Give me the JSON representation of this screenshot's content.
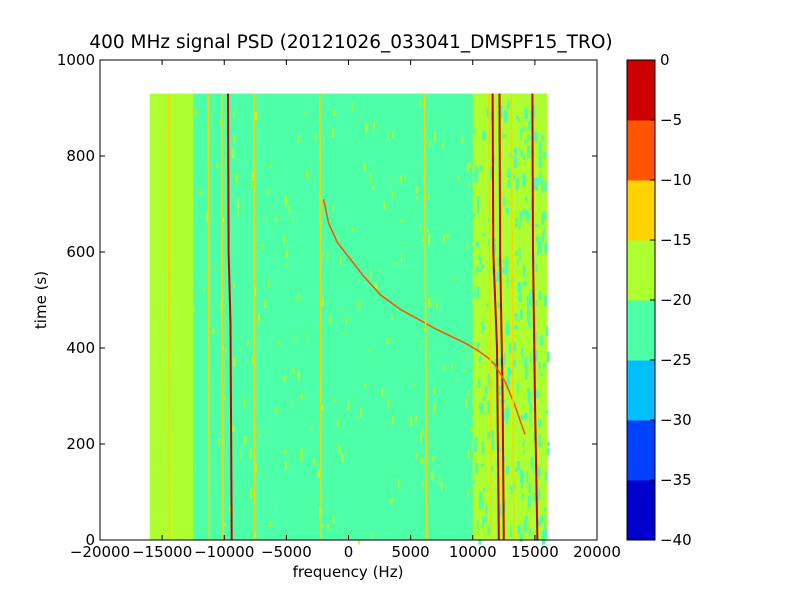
{
  "chart_data": {
    "type": "heatmap",
    "title": "400 MHz signal PSD (20121026_033041_DMSPF15_TRO)",
    "xlabel": "frequency (Hz)",
    "ylabel": "time (s)",
    "xlim": [
      -20000,
      20000
    ],
    "ylim": [
      0,
      1000
    ],
    "x_ticks": [
      -20000,
      -15000,
      -10000,
      -5000,
      0,
      5000,
      10000,
      15000,
      20000
    ],
    "y_ticks": [
      0,
      200,
      400,
      600,
      800,
      1000
    ],
    "data_extent": {
      "x": [
        -16000,
        16000
      ],
      "y": [
        0,
        930
      ]
    },
    "background_color": "#adff2f",
    "colorbar": {
      "levels": [
        -40,
        -35,
        -30,
        -25,
        -20,
        -15,
        -10,
        -5,
        0
      ],
      "tick_labels": [
        "0",
        "−5",
        "−10",
        "−15",
        "−20",
        "−25",
        "−30",
        "−35",
        "−40"
      ],
      "colors": [
        "#0000cd",
        "#0040ff",
        "#00bfff",
        "#4dffa6",
        "#adff2f",
        "#ffd200",
        "#ff5500",
        "#cd0000"
      ]
    },
    "regions": [
      {
        "x": [
          -12500,
          10000
        ],
        "level": "-25 to -20",
        "color": "#4dffa6"
      },
      {
        "x": [
          10000,
          16000
        ],
        "level": "-20 to -15",
        "color": "#adff2f",
        "note": "mixed speckle"
      }
    ],
    "features": [
      {
        "name": "strong carrier",
        "level": "0 to -5",
        "color": "#cd0000",
        "points": [
          [
            -9700,
            930
          ],
          [
            -9650,
            600
          ],
          [
            -9500,
            450
          ],
          [
            -9400,
            0
          ]
        ]
      },
      {
        "name": "strong carrier",
        "level": "0 to -5",
        "color": "#cd0000",
        "points": [
          [
            11600,
            930
          ],
          [
            11650,
            600
          ],
          [
            11950,
            400
          ],
          [
            12100,
            0
          ]
        ]
      },
      {
        "name": "strong carrier",
        "level": "0 to -5",
        "color": "#cd0000",
        "points": [
          [
            12150,
            930
          ],
          [
            12200,
            600
          ],
          [
            12400,
            300
          ],
          [
            12500,
            0
          ]
        ]
      },
      {
        "name": "strong carrier",
        "level": "0 to -5",
        "color": "#cd0000",
        "points": [
          [
            14800,
            930
          ],
          [
            14850,
            600
          ],
          [
            15000,
            300
          ],
          [
            15200,
            0
          ]
        ]
      },
      {
        "name": "doppler sweep",
        "level": "-5 to -10",
        "color": "#ff5500",
        "points": [
          [
            -2000,
            710
          ],
          [
            -1600,
            660
          ],
          [
            -900,
            620
          ],
          [
            0,
            590
          ],
          [
            1200,
            550
          ],
          [
            2600,
            510
          ],
          [
            4200,
            480
          ],
          [
            5600,
            460
          ],
          [
            7000,
            440
          ],
          [
            8200,
            425
          ],
          [
            9400,
            410
          ],
          [
            10400,
            395
          ],
          [
            11200,
            380
          ],
          [
            11800,
            365
          ],
          [
            12600,
            330
          ],
          [
            13400,
            280
          ],
          [
            14200,
            220
          ]
        ]
      },
      {
        "name": "weak line",
        "level": "-10 to -15",
        "color": "#ffd200",
        "points": [
          [
            -14500,
            930
          ],
          [
            -14400,
            0
          ]
        ]
      },
      {
        "name": "weak line",
        "level": "-10 to -15",
        "color": "#ffd200",
        "points": [
          [
            -11300,
            930
          ],
          [
            -11200,
            0
          ]
        ]
      },
      {
        "name": "weak line",
        "level": "-10 to -15",
        "color": "#ffd200",
        "points": [
          [
            -10200,
            930
          ],
          [
            -10100,
            0
          ]
        ]
      },
      {
        "name": "weak line",
        "level": "-10 to -15",
        "color": "#ffd200",
        "points": [
          [
            -7600,
            930
          ],
          [
            -7550,
            0
          ]
        ]
      },
      {
        "name": "weak line",
        "level": "-10 to -15",
        "color": "#ffd200",
        "points": [
          [
            -2300,
            930
          ],
          [
            -2200,
            0
          ]
        ]
      },
      {
        "name": "weak line",
        "level": "-10 to -15",
        "color": "#ffd200",
        "points": [
          [
            6100,
            930
          ],
          [
            6300,
            0
          ]
        ]
      },
      {
        "name": "weak line",
        "level": "-10 to -15",
        "color": "#ffd200",
        "points": [
          [
            11300,
            930
          ],
          [
            11500,
            0
          ]
        ]
      },
      {
        "name": "weak line",
        "level": "-10 to -15",
        "color": "#ffd200",
        "points": [
          [
            13100,
            930
          ],
          [
            13300,
            0
          ]
        ]
      }
    ]
  }
}
